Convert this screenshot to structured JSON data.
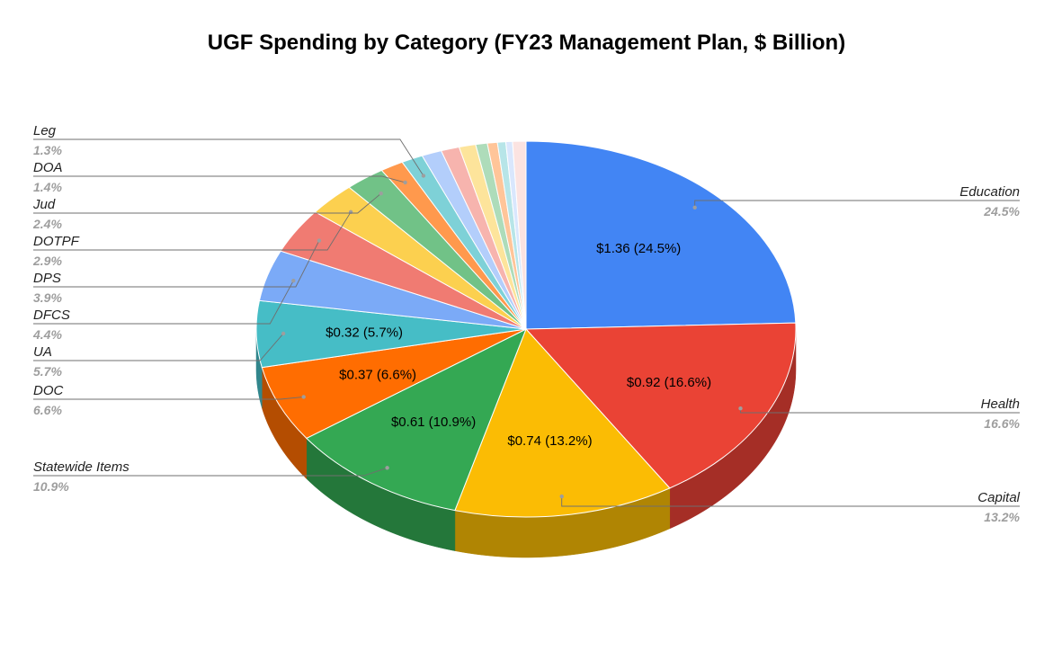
{
  "chart_data": {
    "type": "pie",
    "title": "UGF Spending by Category (FY23 Management Plan, $ Billion)",
    "unit": "$ Billion",
    "slices": [
      {
        "label": "Education",
        "value": 1.36,
        "percent_label": "24.5%",
        "data_label": "$1.36 (24.5%)",
        "color": "#4285f4",
        "side_color": "#2e5fae"
      },
      {
        "label": "Health",
        "value": 0.92,
        "percent_label": "16.6%",
        "data_label": "$0.92 (16.6%)",
        "color": "#ea4335",
        "side_color": "#a52e26"
      },
      {
        "label": "Capital",
        "value": 0.74,
        "percent_label": "13.2%",
        "data_label": "$0.74 (13.2%)",
        "color": "#fbbc04",
        "side_color": "#b08503"
      },
      {
        "label": "Statewide Items",
        "value": 0.61,
        "percent_label": "10.9%",
        "data_label": "$0.61 (10.9%)",
        "color": "#34a853",
        "side_color": "#24773a"
      },
      {
        "label": "DOC",
        "value": 0.37,
        "percent_label": "6.6%",
        "data_label": "$0.37 (6.6%)",
        "color": "#ff6d01",
        "side_color": "#b44d01"
      },
      {
        "label": "UA",
        "value": 0.32,
        "percent_label": "5.7%",
        "data_label": "$0.32 (5.7%)",
        "color": "#46bdc6",
        "side_color": "#31868c"
      },
      {
        "label": "DFCS",
        "value": null,
        "percent_label": "4.4%",
        "data_label": "",
        "color": "#7baaf7",
        "side_color": "#5778af"
      },
      {
        "label": "DPS",
        "value": null,
        "percent_label": "3.9%",
        "data_label": "",
        "color": "#f07b72",
        "side_color": "#aa5751"
      },
      {
        "label": "DOTPF",
        "value": null,
        "percent_label": "2.9%",
        "data_label": "",
        "color": "#fcd04f",
        "side_color": "#b39338"
      },
      {
        "label": "Jud",
        "value": null,
        "percent_label": "2.4%",
        "data_label": "",
        "color": "#71c287",
        "side_color": "#50895f"
      },
      {
        "label": "DOA",
        "value": null,
        "percent_label": "1.4%",
        "data_label": "",
        "color": "#ff994d",
        "side_color": "#b56c36"
      },
      {
        "label": "Leg",
        "value": null,
        "percent_label": "1.3%",
        "data_label": "",
        "color": "#7ed1d7",
        "side_color": "#5a9498"
      },
      {
        "label": "",
        "value": null,
        "percent": 1.2,
        "percent_label": "",
        "data_label": "",
        "color": "#b3cefb",
        "side_color": "#7f92b2"
      },
      {
        "label": "",
        "value": null,
        "percent": 1.1,
        "percent_label": "",
        "data_label": "",
        "color": "#f7b4ae",
        "side_color": "#af807b"
      },
      {
        "label": "",
        "value": null,
        "percent": 1.0,
        "percent_label": "",
        "data_label": "",
        "color": "#fde49b",
        "side_color": "#b3a16e"
      },
      {
        "label": "",
        "value": null,
        "percent": 0.7,
        "percent_label": "",
        "data_label": "",
        "color": "#aedcba",
        "side_color": "#7b9c84"
      },
      {
        "label": "",
        "value": null,
        "percent": 0.6,
        "percent_label": "",
        "data_label": "",
        "color": "#ffc599",
        "side_color": "#b58c6c"
      },
      {
        "label": "",
        "value": null,
        "percent": 0.5,
        "percent_label": "",
        "data_label": "",
        "color": "#b7e5e8",
        "side_color": "#82a2a4"
      },
      {
        "label": "",
        "value": null,
        "percent": 0.4,
        "percent_label": "",
        "data_label": "",
        "color": "#d9e7fd",
        "side_color": "#9aa4b3"
      },
      {
        "label": "",
        "value": null,
        "percent": 0.8,
        "percent_label": "",
        "data_label": "",
        "color": "#fbe3e1",
        "side_color": "#b2a19f"
      }
    ],
    "legend": "none",
    "style": "3d-pie"
  }
}
